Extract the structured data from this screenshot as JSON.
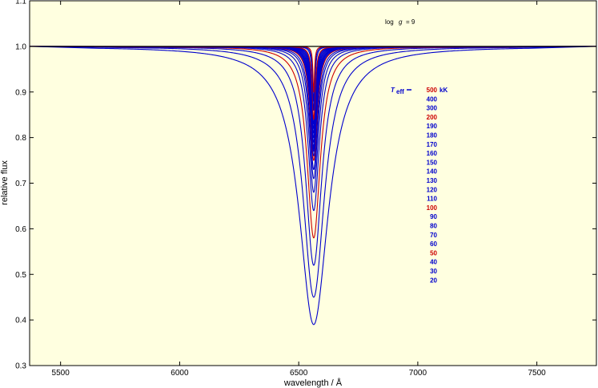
{
  "chart_data": {
    "type": "line",
    "title": "",
    "xlabel": "wavelength / Å",
    "ylabel": "relative flux",
    "xlim": [
      5370,
      7750
    ],
    "ylim": [
      0.3,
      1.1
    ],
    "x_ticks": [
      5500,
      6000,
      6500,
      7000,
      7500
    ],
    "y_ticks": [
      0.3,
      0.4,
      0.5,
      0.6,
      0.7,
      0.8,
      0.9,
      1.0,
      1.1
    ],
    "background_color": "#ffffe0",
    "grid": false,
    "annotation": {
      "log_label": "log",
      "g_label": "g",
      "eq": "= 9"
    },
    "legend": {
      "placement": "top-right",
      "teff_symbol": "T",
      "teff_sub": "eff",
      "unit": "kK",
      "entries": [
        {
          "label": "500",
          "color": "#cc0000"
        },
        {
          "label": "400",
          "color": "#0000cc"
        },
        {
          "label": "300",
          "color": "#0000cc"
        },
        {
          "label": "200",
          "color": "#cc0000"
        },
        {
          "label": "190",
          "color": "#0000cc"
        },
        {
          "label": "180",
          "color": "#0000cc"
        },
        {
          "label": "170",
          "color": "#0000cc"
        },
        {
          "label": "160",
          "color": "#0000cc"
        },
        {
          "label": "150",
          "color": "#0000cc"
        },
        {
          "label": "140",
          "color": "#0000cc"
        },
        {
          "label": "130",
          "color": "#0000cc"
        },
        {
          "label": "120",
          "color": "#0000cc"
        },
        {
          "label": "110",
          "color": "#0000cc"
        },
        {
          "label": "100",
          "color": "#cc0000"
        },
        {
          "label": "90",
          "color": "#0000cc"
        },
        {
          "label": "80",
          "color": "#0000cc"
        },
        {
          "label": "70",
          "color": "#0000cc"
        },
        {
          "label": "60",
          "color": "#0000cc"
        },
        {
          "label": "50",
          "color": "#cc0000"
        },
        {
          "label": "40",
          "color": "#0000cc"
        },
        {
          "label": "30",
          "color": "#0000cc"
        },
        {
          "label": "20",
          "color": "#0000cc"
        }
      ]
    },
    "series": [
      {
        "teff": 500,
        "color": "#cc0000",
        "center": 6563,
        "min_flux": 0.9,
        "hwhm": 4
      },
      {
        "teff": 400,
        "color": "#0000cc",
        "center": 6563,
        "min_flux": 0.88,
        "hwhm": 5
      },
      {
        "teff": 300,
        "color": "#0000cc",
        "center": 6563,
        "min_flux": 0.86,
        "hwhm": 6
      },
      {
        "teff": 200,
        "color": "#cc0000",
        "center": 6563,
        "min_flux": 0.84,
        "hwhm": 8
      },
      {
        "teff": 190,
        "color": "#0000cc",
        "center": 6563,
        "min_flux": 0.83,
        "hwhm": 9
      },
      {
        "teff": 180,
        "color": "#0000cc",
        "center": 6563,
        "min_flux": 0.82,
        "hwhm": 10
      },
      {
        "teff": 170,
        "color": "#0000cc",
        "center": 6563,
        "min_flux": 0.81,
        "hwhm": 11
      },
      {
        "teff": 160,
        "color": "#0000cc",
        "center": 6563,
        "min_flux": 0.8,
        "hwhm": 12
      },
      {
        "teff": 150,
        "color": "#0000cc",
        "center": 6563,
        "min_flux": 0.79,
        "hwhm": 13
      },
      {
        "teff": 140,
        "color": "#0000cc",
        "center": 6563,
        "min_flux": 0.78,
        "hwhm": 14
      },
      {
        "teff": 130,
        "color": "#0000cc",
        "center": 6563,
        "min_flux": 0.775,
        "hwhm": 15
      },
      {
        "teff": 120,
        "color": "#0000cc",
        "center": 6563,
        "min_flux": 0.77,
        "hwhm": 16
      },
      {
        "teff": 110,
        "color": "#0000cc",
        "center": 6563,
        "min_flux": 0.76,
        "hwhm": 17
      },
      {
        "teff": 100,
        "color": "#cc0000",
        "center": 6563,
        "min_flux": 0.75,
        "hwhm": 18
      },
      {
        "teff": 90,
        "color": "#0000cc",
        "center": 6563,
        "min_flux": 0.73,
        "hwhm": 20
      },
      {
        "teff": 80,
        "color": "#0000cc",
        "center": 6563,
        "min_flux": 0.71,
        "hwhm": 22
      },
      {
        "teff": 70,
        "color": "#0000cc",
        "center": 6563,
        "min_flux": 0.68,
        "hwhm": 25
      },
      {
        "teff": 60,
        "color": "#0000cc",
        "center": 6563,
        "min_flux": 0.64,
        "hwhm": 29
      },
      {
        "teff": 50,
        "color": "#cc0000",
        "center": 6563,
        "min_flux": 0.58,
        "hwhm": 34
      },
      {
        "teff": 40,
        "color": "#0000cc",
        "center": 6563,
        "min_flux": 0.52,
        "hwhm": 42
      },
      {
        "teff": 30,
        "color": "#0000cc",
        "center": 6563,
        "min_flux": 0.45,
        "hwhm": 55
      },
      {
        "teff": 20,
        "color": "#0000cc",
        "center": 6563,
        "min_flux": 0.39,
        "hwhm": 75
      }
    ]
  }
}
